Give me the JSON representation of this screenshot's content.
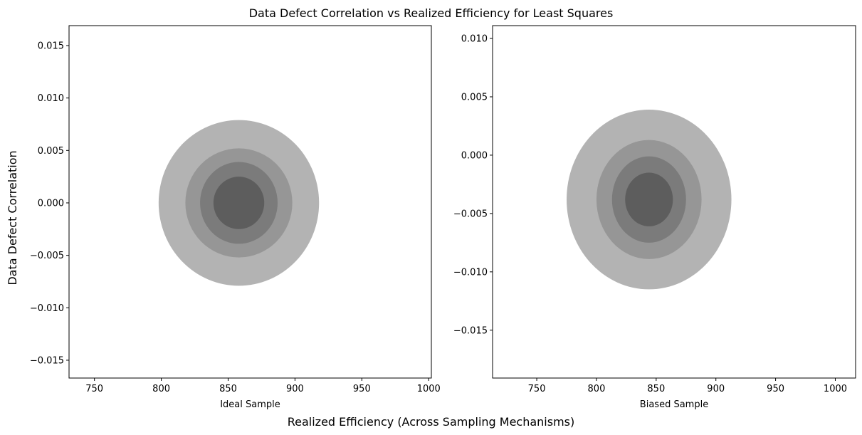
{
  "figure": {
    "title": "Data Defect Correlation vs Realized Efficiency for Least Squares",
    "supxlabel": "Realized Efficiency (Across Sampling Mechanisms)",
    "supylabel": "Data Defect Correlation"
  },
  "colors": {
    "levels": [
      "#b3b3b3",
      "#969696",
      "#7b7b7b",
      "#5d5d5d"
    ],
    "axes": "#000000",
    "background": "#ffffff"
  },
  "chart_data": [
    {
      "type": "contour",
      "xlabel": "Ideal Sample",
      "ylabel": "",
      "xlim": [
        731,
        1002
      ],
      "ylim": [
        -0.0167,
        0.0169
      ],
      "xticks": [
        750,
        800,
        850,
        900,
        950,
        1000
      ],
      "yticks": [
        -0.015,
        -0.01,
        -0.005,
        0.0,
        0.005,
        0.01,
        0.015
      ],
      "ytick_labels": [
        "−0.015",
        "−0.010",
        "−0.005",
        "0.000",
        "0.005",
        "0.010",
        "0.015"
      ],
      "center": [
        858,
        0.0
      ],
      "levels": [
        {
          "rx": 60,
          "ry": 0.0079
        },
        {
          "rx": 40,
          "ry": 0.0052
        },
        {
          "rx": 29,
          "ry": 0.0039
        },
        {
          "rx": 19,
          "ry": 0.0025
        }
      ]
    },
    {
      "type": "contour",
      "xlabel": "Biased Sample",
      "ylabel": "",
      "xlim": [
        713,
        1017
      ],
      "ylim": [
        -0.0191,
        0.0111
      ],
      "xticks": [
        750,
        800,
        850,
        900,
        950,
        1000
      ],
      "yticks": [
        -0.015,
        -0.01,
        -0.005,
        0.0,
        0.005,
        0.01
      ],
      "ytick_labels": [
        "−0.015",
        "−0.010",
        "−0.005",
        "0.000",
        "0.005",
        "0.010"
      ],
      "center": [
        844,
        -0.0038
      ],
      "levels": [
        {
          "rx": 69,
          "ry": 0.0077
        },
        {
          "rx": 44,
          "ry": 0.0051
        },
        {
          "rx": 31,
          "ry": 0.0037
        },
        {
          "rx": 20,
          "ry": 0.0023
        }
      ]
    }
  ]
}
